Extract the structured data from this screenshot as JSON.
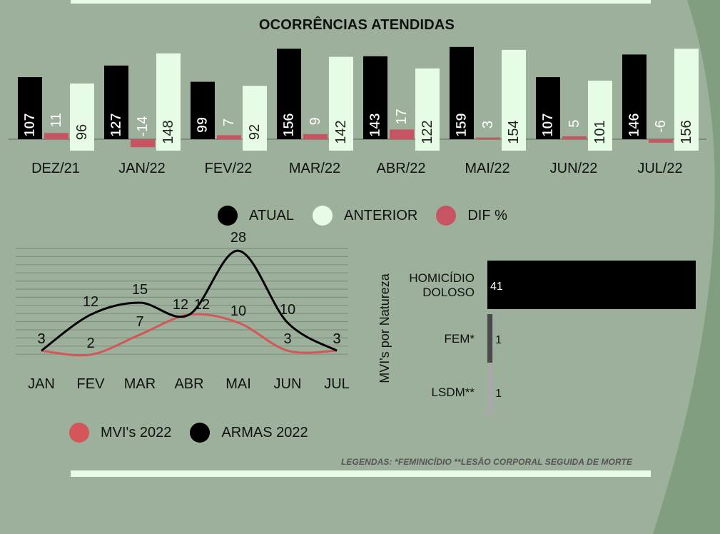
{
  "bar_chart_title": "OCORRÊNCIAS ATENDIDAS",
  "legend_top": [
    {
      "label": "ATUAL",
      "color": "#000000"
    },
    {
      "label": "ANTERIOR",
      "color": "#e6fce4"
    },
    {
      "label": "DIF %",
      "color": "#c65462"
    }
  ],
  "legend_bottom": [
    {
      "label": "MVI's 2022",
      "color": "#d4565a"
    },
    {
      "label": "ARMAS 2022",
      "color": "#000000"
    }
  ],
  "footnote": "LEGENDAS: *FEMINICÍDIO **LESÃO CORPORAL SEGUIDA DE MORTE",
  "colors": {
    "background": "#9cb09b",
    "atual": "#000000",
    "anterior": "#e6fce4",
    "dif": "#c65462",
    "mvi_line": "#d4565a",
    "armas_line": "#000000"
  },
  "chart_data": [
    {
      "type": "bar",
      "title": "OCORRÊNCIAS ATENDIDAS",
      "categories": [
        "DEZ/21",
        "JAN/22",
        "FEV/22",
        "MAR/22",
        "ABR/22",
        "MAI/22",
        "JUN/22",
        "JUL/22"
      ],
      "series": [
        {
          "name": "ATUAL",
          "values": [
            107,
            127,
            99,
            156,
            143,
            159,
            107,
            146
          ]
        },
        {
          "name": "DIF %",
          "values": [
            11,
            -14,
            7,
            9,
            17,
            3,
            5,
            -6
          ]
        },
        {
          "name": "ANTERIOR",
          "values": [
            96,
            148,
            92,
            142,
            122,
            154,
            101,
            156
          ]
        }
      ],
      "legend": "bottom"
    },
    {
      "type": "line",
      "categories": [
        "JAN",
        "FEV",
        "MAR",
        "ABR",
        "MAI",
        "JUN",
        "JUL"
      ],
      "series": [
        {
          "name": "ARMAS 2022",
          "values": [
            3,
            12,
            15,
            12,
            28,
            10,
            3
          ]
        },
        {
          "name": "MVI's 2022",
          "values": [
            3,
            2,
            7,
            12,
            10,
            3,
            3
          ]
        }
      ],
      "grid": true,
      "legend": "bottom"
    },
    {
      "type": "bar",
      "orientation": "horizontal",
      "ylabel": "MVI's por Natureza",
      "categories": [
        "HOMICÍDIO DOLOSO",
        "FEM*",
        "LSDM**"
      ],
      "values": [
        41,
        1,
        1
      ],
      "colors": [
        "#000000",
        "#4a4a4a",
        "#a9a9a9"
      ]
    }
  ]
}
